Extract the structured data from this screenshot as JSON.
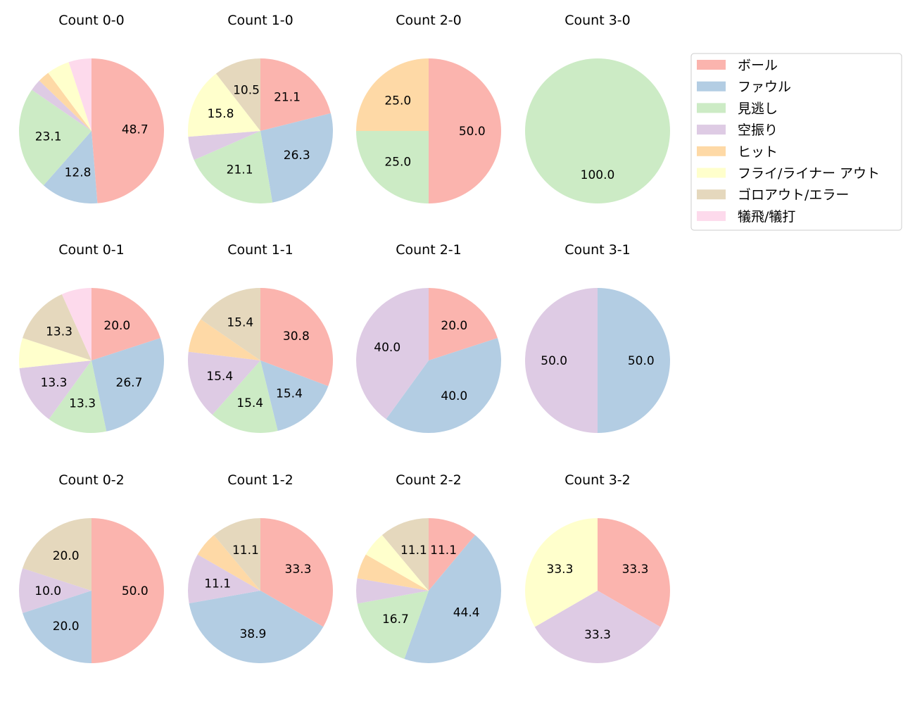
{
  "chart_data": {
    "type": "pie",
    "legend_placement": "upper-right",
    "categories": [
      "ボール",
      "ファウル",
      "見逃し",
      "空振り",
      "ヒット",
      "フライ/ライナー アウト",
      "ゴロアウト/エラー",
      "犠飛/犠打"
    ],
    "colors": [
      "#fbb4ae",
      "#b3cde3",
      "#ccebc5",
      "#decbe4",
      "#fed9a6",
      "#ffffcc",
      "#e5d8bd",
      "#fddaec"
    ],
    "label_threshold_percent": 10,
    "charts": [
      {
        "title": "Count 0-0",
        "values": [
          48.7,
          12.8,
          23.1,
          2.6,
          2.6,
          5.1,
          0,
          5.1
        ]
      },
      {
        "title": "Count 1-0",
        "values": [
          21.1,
          26.3,
          21.1,
          5.3,
          0,
          15.8,
          10.5,
          0
        ]
      },
      {
        "title": "Count 2-0",
        "values": [
          50.0,
          0,
          25.0,
          0,
          25.0,
          0,
          0,
          0
        ]
      },
      {
        "title": "Count 3-0",
        "values": [
          0,
          0,
          100.0,
          0,
          0,
          0,
          0,
          0
        ]
      },
      {
        "title": "Count 0-1",
        "values": [
          20.0,
          26.7,
          13.3,
          13.3,
          0,
          6.7,
          13.3,
          6.7
        ]
      },
      {
        "title": "Count 1-1",
        "values": [
          30.8,
          15.4,
          15.4,
          15.4,
          7.7,
          0,
          15.4,
          0
        ]
      },
      {
        "title": "Count 2-1",
        "values": [
          20.0,
          40.0,
          0,
          40.0,
          0,
          0,
          0,
          0
        ]
      },
      {
        "title": "Count 3-1",
        "values": [
          0,
          50.0,
          0,
          50.0,
          0,
          0,
          0,
          0
        ]
      },
      {
        "title": "Count 0-2",
        "values": [
          50.0,
          20.0,
          0,
          10.0,
          0,
          0,
          20.0,
          0
        ]
      },
      {
        "title": "Count 1-2",
        "values": [
          33.3,
          38.9,
          0,
          11.1,
          5.6,
          0,
          11.1,
          0
        ]
      },
      {
        "title": "Count 2-2",
        "values": [
          11.1,
          44.4,
          16.7,
          5.6,
          5.6,
          5.6,
          11.1,
          0
        ]
      },
      {
        "title": "Count 3-2",
        "values": [
          33.3,
          0,
          0,
          33.3,
          0,
          33.3,
          0,
          0
        ]
      }
    ]
  }
}
